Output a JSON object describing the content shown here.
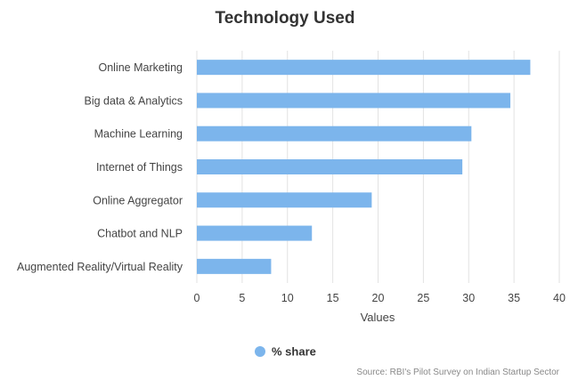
{
  "chart_data": {
    "type": "bar",
    "orientation": "horizontal",
    "title": "Technology Used",
    "xlabel": "Values",
    "ylabel": "",
    "categories": [
      "Online Marketing",
      "Big data & Analytics",
      "Machine Learning",
      "Internet of Things",
      "Online Aggregator",
      "Chatbot and NLP",
      "Augmented Reality/Virtual Reality"
    ],
    "series": [
      {
        "name": "% share",
        "color": "#7cb5ec",
        "values": [
          36.8,
          34.6,
          30.3,
          29.3,
          19.3,
          12.7,
          8.2
        ]
      }
    ],
    "xlim": [
      0,
      40
    ],
    "ticks": [
      0,
      5,
      10,
      15,
      20,
      25,
      30,
      35,
      40
    ],
    "grid": true,
    "legend": "bottom-center",
    "source": "Source: RBI's Pilot Survey on Indian Startup Sector"
  }
}
